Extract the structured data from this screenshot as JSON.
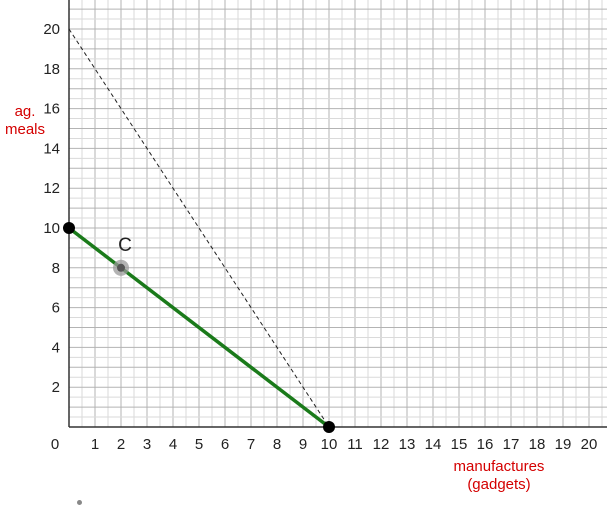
{
  "chart_data": {
    "type": "line",
    "xlabel": "manufactures\n(gadgets)",
    "ylabel": "ag.\nmeals",
    "xlim": [
      0,
      20
    ],
    "ylim": [
      0,
      20
    ],
    "x_ticks": [
      "0",
      "1",
      "2",
      "3",
      "4",
      "5",
      "6",
      "7",
      "8",
      "9",
      "10",
      "11",
      "12",
      "13",
      "14",
      "15",
      "16",
      "17",
      "18",
      "19",
      "20"
    ],
    "y_ticks": [
      "2",
      "4",
      "6",
      "8",
      "10",
      "12",
      "14",
      "16",
      "18",
      "20"
    ],
    "grid": true,
    "series": [
      {
        "style": "solid",
        "color": "#1a7a1a",
        "points": [
          {
            "x": 0,
            "y": 10
          },
          {
            "x": 10,
            "y": 0
          }
        ]
      },
      {
        "style": "dashed",
        "color": "#222222",
        "points": [
          {
            "x": 0,
            "y": 20
          },
          {
            "x": 10,
            "y": 0
          }
        ]
      }
    ],
    "points": [
      {
        "x": 0,
        "y": 10,
        "color": "#000000"
      },
      {
        "x": 10,
        "y": 0,
        "color": "#000000"
      }
    ],
    "annotations": [
      {
        "label": "C",
        "x": 2,
        "y": 8,
        "color": "#555555"
      }
    ]
  }
}
